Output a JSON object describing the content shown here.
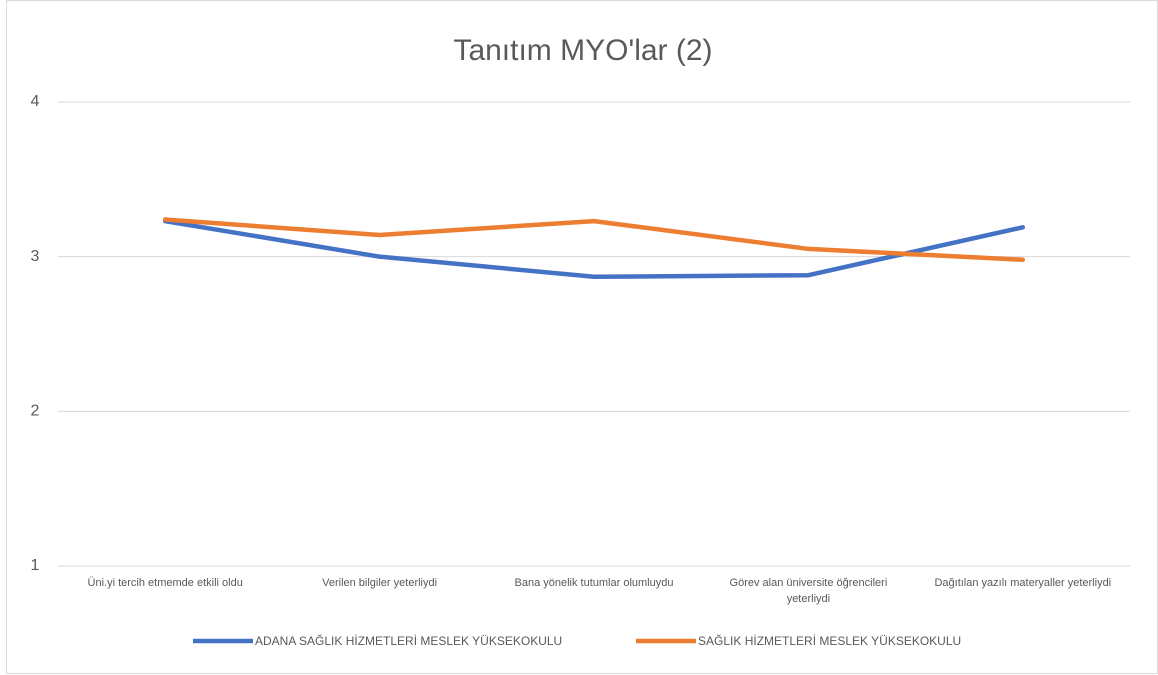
{
  "chart_data": {
    "type": "line",
    "title": "Tanıtım MYO'lar (2)",
    "categories": [
      "Üni.yi tercih etmemde etkili oldu",
      "Verilen bilgiler yeterliydi",
      "Bana yönelik tutumlar olumluydu",
      "Görev alan üniversite öğrencileri yeterliydi",
      "Dağıtılan yazılı materyaller yeterliydi"
    ],
    "series": [
      {
        "name": "ADANA SAĞLIK HİZMETLERİ MESLEK YÜKSEKOKULU",
        "color": "#4472c4",
        "values": [
          3.23,
          3.0,
          2.87,
          2.88,
          3.19
        ]
      },
      {
        "name": "SAĞLIK HİZMETLERİ MESLEK YÜKSEKOKULU",
        "color": "#ed7d31",
        "values": [
          3.24,
          3.14,
          3.23,
          3.05,
          2.98
        ]
      }
    ],
    "ylim": [
      1,
      4
    ],
    "yticks": [
      1,
      2,
      3,
      4
    ],
    "grid": true,
    "legend": "bottom"
  }
}
